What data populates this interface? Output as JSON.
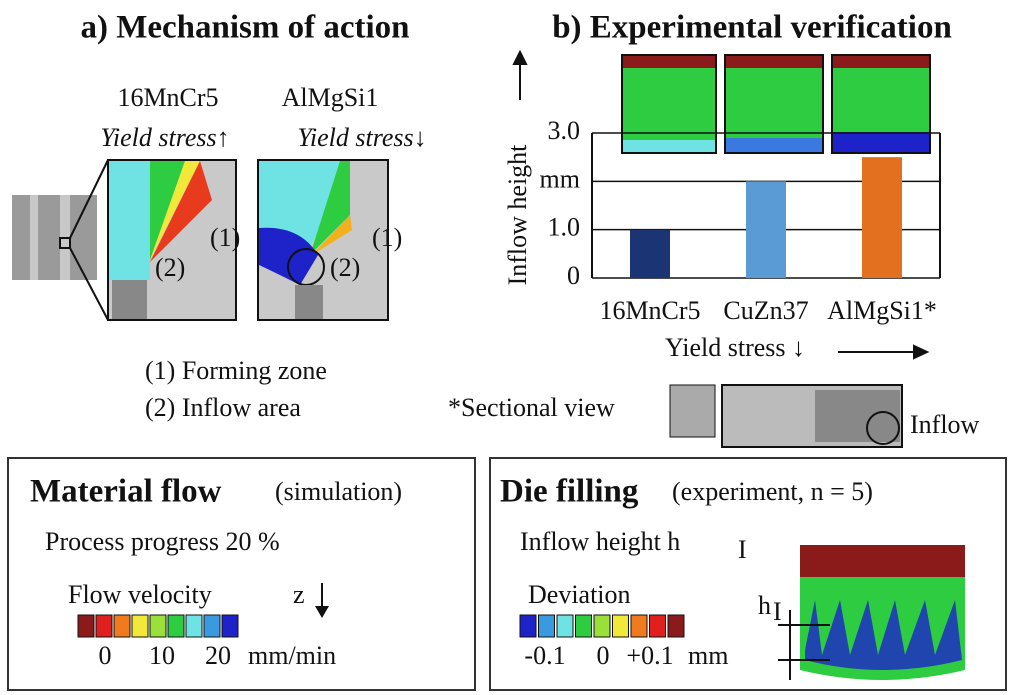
{
  "panel_a": {
    "title": "a) Mechanism of action",
    "materials": [
      {
        "name": "16MnCr5",
        "note": "Yield stress↑"
      },
      {
        "name": "AlMgSi1",
        "note": "Yield stress↓"
      }
    ],
    "markers": [
      "(1)",
      "(2)"
    ],
    "legend": [
      "(1) Forming zone",
      "(2) Inflow area"
    ]
  },
  "panel_b": {
    "title": "b) Experimental verification",
    "section_label": "*Sectional view",
    "inflow_label": "Inflow"
  },
  "chart_data": {
    "type": "bar",
    "y_label": "Inflow height",
    "x_label": "Yield stress ↓",
    "categories": [
      "16MnCr5",
      "CuZn37",
      "AlMgSi1*"
    ],
    "values": [
      1.0,
      2.0,
      2.5
    ],
    "colors": [
      "#1b3473",
      "#5b9bd5",
      "#e2701e"
    ],
    "ylim": [
      0,
      3
    ],
    "yticks": [
      0,
      {
        "value": 1,
        "label": "1.0"
      },
      {
        "value": 2,
        "label": "mm"
      },
      {
        "value": 3,
        "label": "3.0"
      }
    ],
    "grid": true
  },
  "box_flow": {
    "title": "Material flow",
    "subtitle": "(simulation)",
    "progress": "Process progress 20 %",
    "scale_title": "Flow velocity",
    "direction": "z",
    "scale_ticks": [
      "0",
      "10",
      "20"
    ],
    "unit": "mm/min"
  },
  "box_fill": {
    "title": "Die filling",
    "subtitle": "(experiment, n = 5)",
    "measure": "Inflow height h",
    "measure_sub": "I",
    "scale_title": "Deviation",
    "scale_ticks": [
      "-0.1",
      "0",
      "+0.1"
    ],
    "unit": "mm",
    "dim": "h",
    "dim_sub": "I"
  }
}
